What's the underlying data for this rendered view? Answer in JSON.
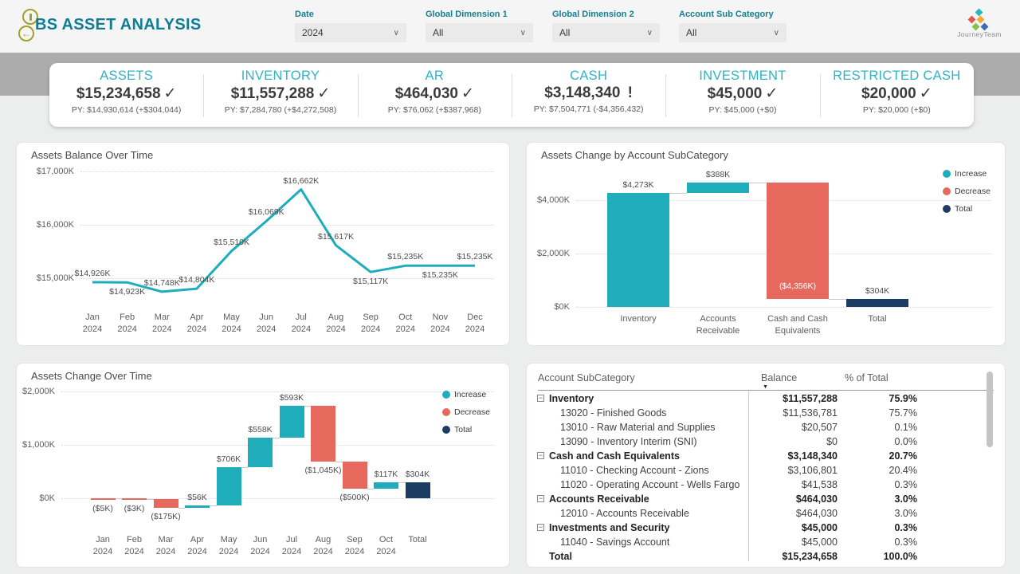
{
  "header": {
    "title": "BS ASSET ANALYSIS",
    "logo_text": "JourneyTeam",
    "filters": [
      {
        "label": "Date",
        "value": "2024"
      },
      {
        "label": "Global Dimension 1",
        "value": "All"
      },
      {
        "label": "Global Dimension 2",
        "value": "All"
      },
      {
        "label": "Account Sub Category",
        "value": "All"
      }
    ]
  },
  "kpis": [
    {
      "label": "ASSETS",
      "value": "$15,234,658",
      "status": "check",
      "py": "PY: $14,930,614 (+$304,044)"
    },
    {
      "label": "INVENTORY",
      "value": "$11,557,288",
      "status": "check",
      "py": "PY: $7,284,780 (+$4,272,508)"
    },
    {
      "label": "AR",
      "value": "$464,030",
      "status": "check",
      "py": "PY: $76,062 (+$387,968)"
    },
    {
      "label": "CASH",
      "value": "$3,148,340",
      "status": "alert",
      "py": "PY: $7,504,771 (-$4,356,432)"
    },
    {
      "label": "INVESTMENT",
      "value": "$45,000",
      "status": "check",
      "py": "PY: $45,000 (+$0)"
    },
    {
      "label": "RESTRICTED CASH",
      "value": "$20,000",
      "status": "check",
      "py": "PY: $20,000 (+$0)"
    }
  ],
  "chart_data": [
    {
      "type": "line",
      "title": "Assets Balance Over Time",
      "x": [
        "Jan 2024",
        "Feb 2024",
        "Mar 2024",
        "Apr 2024",
        "May 2024",
        "Jun 2024",
        "Jul 2024",
        "Aug 2024",
        "Sep 2024",
        "Oct 2024",
        "Nov 2024",
        "Dec 2024"
      ],
      "values_k": [
        14926,
        14923,
        14748,
        14804,
        15510,
        16069,
        16662,
        15617,
        15117,
        15235,
        15235,
        15235
      ],
      "point_labels": [
        "$14,926K",
        "$14,923K",
        "$14,748K",
        "$14,804K",
        "$15,510K",
        "$16,069K",
        "$16,662K",
        "$15,617K",
        "$15,117K",
        "$15,235K",
        "$15,235K",
        "$15,235K"
      ],
      "label_pos": [
        "above",
        "below",
        "above",
        "above",
        "above",
        "above",
        "above",
        "above",
        "below",
        "above",
        "below",
        "above"
      ],
      "yticks": [
        "$17,000K",
        "$16,000K",
        "$15,000K"
      ],
      "ylim_k": [
        15000,
        17000
      ],
      "grid": "dotted-horizontal",
      "legend_position": "none"
    },
    {
      "type": "waterfall",
      "title": "Assets Change by Account SubCategory",
      "categories": [
        "Inventory",
        "Accounts Receivable",
        "Cash and Cash Equivalents",
        "Total"
      ],
      "values_k": [
        4273,
        388,
        -4356,
        304
      ],
      "kinds": [
        "increase",
        "increase",
        "decrease",
        "total"
      ],
      "bar_labels": [
        "$4,273K",
        "$388K",
        "($4,356K)",
        "$304K"
      ],
      "yticks": [
        "$4,000K",
        "$2,000K",
        "$0K"
      ],
      "ylim_k": [
        0,
        4700
      ],
      "legend": [
        "Increase",
        "Decrease",
        "Total"
      ],
      "legend_position": "right"
    },
    {
      "type": "waterfall",
      "title": "Assets Change Over Time",
      "categories": [
        "Jan 2024",
        "Feb 2024",
        "Mar 2024",
        "Apr 2024",
        "May 2024",
        "Jun 2024",
        "Jul 2024",
        "Aug 2024",
        "Sep 2024",
        "Oct 2024",
        "Total"
      ],
      "values_k": [
        -5,
        -3,
        -175,
        56,
        706,
        558,
        593,
        -1045,
        -500,
        117,
        304
      ],
      "kinds": [
        "decrease",
        "decrease",
        "decrease",
        "increase",
        "increase",
        "increase",
        "increase",
        "decrease",
        "decrease",
        "increase",
        "total"
      ],
      "bar_labels": [
        "($5K)",
        "($3K)",
        "($175K)",
        "$56K",
        "$706K",
        "$558K",
        "$593K",
        "($1,045K)",
        "($500K)",
        "$117K",
        "$304K"
      ],
      "yticks": [
        "$2,000K",
        "$1,000K",
        "$0K"
      ],
      "ylim_k": [
        -200,
        2000
      ],
      "legend": [
        "Increase",
        "Decrease",
        "Total"
      ],
      "legend_position": "right"
    }
  ],
  "table": {
    "headers": [
      "Account SubCategory",
      "Balance",
      "% of Total"
    ],
    "sort_indicator": "▼",
    "rows": [
      {
        "name": "Inventory",
        "balance": "$11,557,288",
        "pct": "75.9%",
        "kind": "group"
      },
      {
        "name": "13020 - Finished Goods",
        "balance": "$11,536,781",
        "pct": "75.7%",
        "kind": "child"
      },
      {
        "name": "13010 - Raw Material and Supplies",
        "balance": "$20,507",
        "pct": "0.1%",
        "kind": "child"
      },
      {
        "name": "13090 - Inventory Interim (SNI)",
        "balance": "$0",
        "pct": "0.0%",
        "kind": "child"
      },
      {
        "name": "Cash and Cash Equivalents",
        "balance": "$3,148,340",
        "pct": "20.7%",
        "kind": "group"
      },
      {
        "name": "11010 - Checking Account - Zions",
        "balance": "$3,106,801",
        "pct": "20.4%",
        "kind": "child"
      },
      {
        "name": "11020 - Operating Account - Wells Fargo",
        "balance": "$41,538",
        "pct": "0.3%",
        "kind": "child"
      },
      {
        "name": "Accounts Receivable",
        "balance": "$464,030",
        "pct": "3.0%",
        "kind": "group"
      },
      {
        "name": "12010 - Accounts Receivable",
        "balance": "$464,030",
        "pct": "3.0%",
        "kind": "child"
      },
      {
        "name": "Investments and Security",
        "balance": "$45,000",
        "pct": "0.3%",
        "kind": "group"
      },
      {
        "name": "11040 - Savings Account",
        "balance": "$45,000",
        "pct": "0.3%",
        "kind": "child"
      },
      {
        "name": "Total",
        "balance": "$15,234,658",
        "pct": "100.0%",
        "kind": "total"
      }
    ]
  },
  "status_glyphs": {
    "check": "✓",
    "alert": "!"
  },
  "colors": {
    "teal": "#1FADBB",
    "red": "#E7695E",
    "navy": "#1C3C63",
    "kpi_label": "#2FB3C7",
    "title_text": "#0F7E95",
    "filter_label": "#15808F",
    "gray_band": "#ACACAC",
    "olive_icon": "#9FA12B"
  }
}
